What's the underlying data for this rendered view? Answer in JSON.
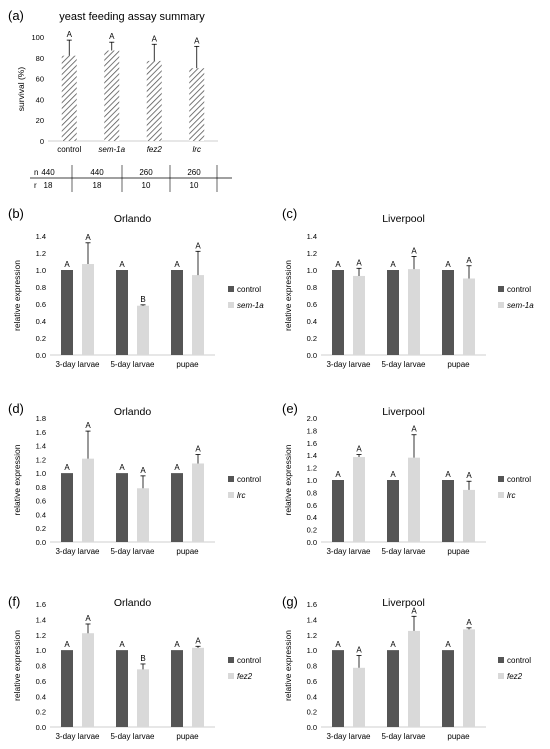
{
  "colors": {
    "control": "#555555",
    "treatment": "#d9d9d9",
    "hatch": "#555555",
    "axis": "#bfbfbf"
  },
  "panel_a": {
    "label": "(a)",
    "title": "yeast feeding assay summary",
    "table": {
      "rows": [
        {
          "label": "n",
          "values": [
            "440",
            "440",
            "260",
            "260"
          ]
        },
        {
          "label": "r",
          "values": [
            "18",
            "18",
            "10",
            "10"
          ]
        }
      ]
    }
  },
  "chart_data": [
    {
      "id": "a",
      "type": "bar",
      "title": "yeast feeding assay summary",
      "ylabel": "survival (%)",
      "ylim": [
        0,
        100
      ],
      "yticks": [
        0,
        20,
        40,
        60,
        80,
        100
      ],
      "categories": [
        "control",
        "sem-1a",
        "fez2",
        "lrc"
      ],
      "category_italic": [
        false,
        true,
        true,
        true
      ],
      "series": [
        {
          "values": [
            82,
            87,
            77,
            70
          ],
          "errors": [
            15,
            8,
            16,
            21
          ],
          "letters": [
            "A",
            "A",
            "A",
            "A"
          ]
        }
      ]
    },
    {
      "id": "b",
      "label": "(b)",
      "type": "bar",
      "title": "Orlando",
      "ylabel": "relative expression",
      "ylim": [
        0,
        1.4
      ],
      "yticks": [
        0,
        0.2,
        0.4,
        0.6,
        0.8,
        1.0,
        1.2,
        1.4
      ],
      "categories": [
        "3-day larvae",
        "5-day larvae",
        "pupae"
      ],
      "series": [
        {
          "name": "control",
          "values": [
            1.0,
            1.0,
            1.0
          ],
          "errors": [
            0,
            0,
            0
          ],
          "letters": [
            "A",
            "A",
            "A"
          ]
        },
        {
          "name": "sem-1a",
          "values": [
            1.07,
            0.58,
            0.94
          ],
          "errors": [
            0.25,
            0.01,
            0.28
          ],
          "letters": [
            "A",
            "B",
            "A"
          ]
        }
      ]
    },
    {
      "id": "c",
      "label": "(c)",
      "type": "bar",
      "title": "Liverpool",
      "ylabel": "relative expression",
      "ylim": [
        0,
        1.4
      ],
      "yticks": [
        0,
        0.2,
        0.4,
        0.6,
        0.8,
        1.0,
        1.2,
        1.4
      ],
      "categories": [
        "3-day larvae",
        "5-day larvae",
        "pupae"
      ],
      "series": [
        {
          "name": "control",
          "values": [
            1.0,
            1.0,
            1.0
          ],
          "errors": [
            0,
            0,
            0
          ],
          "letters": [
            "A",
            "A",
            "A"
          ]
        },
        {
          "name": "sem-1a",
          "values": [
            0.93,
            1.01,
            0.9
          ],
          "errors": [
            0.09,
            0.15,
            0.15
          ],
          "letters": [
            "A",
            "A",
            "A"
          ]
        }
      ]
    },
    {
      "id": "d",
      "label": "(d)",
      "type": "bar",
      "title": "Orlando",
      "ylabel": "relative expression",
      "ylim": [
        0,
        1.8
      ],
      "yticks": [
        0,
        0.2,
        0.4,
        0.6,
        0.8,
        1.0,
        1.2,
        1.4,
        1.6,
        1.8
      ],
      "categories": [
        "3-day larvae",
        "5-day larvae",
        "pupae"
      ],
      "series": [
        {
          "name": "control",
          "values": [
            1.0,
            1.0,
            1.0
          ],
          "errors": [
            0,
            0,
            0
          ],
          "letters": [
            "A",
            "A",
            "A"
          ]
        },
        {
          "name": "lrc",
          "values": [
            1.21,
            0.78,
            1.14
          ],
          "errors": [
            0.4,
            0.18,
            0.13
          ],
          "letters": [
            "A",
            "A",
            "A"
          ]
        }
      ]
    },
    {
      "id": "e",
      "label": "(e)",
      "type": "bar",
      "title": "Liverpool",
      "ylabel": "relative expression",
      "ylim": [
        0,
        2.0
      ],
      "yticks": [
        0,
        0.2,
        0.4,
        0.6,
        0.8,
        1.0,
        1.2,
        1.4,
        1.6,
        1.8,
        2.0
      ],
      "categories": [
        "3-day larvae",
        "5-day larvae",
        "pupae"
      ],
      "series": [
        {
          "name": "control",
          "values": [
            1.0,
            1.0,
            1.0
          ],
          "errors": [
            0,
            0,
            0
          ],
          "letters": [
            "A",
            "A",
            "A"
          ]
        },
        {
          "name": "lrc",
          "values": [
            1.37,
            1.36,
            0.84
          ],
          "errors": [
            0.04,
            0.37,
            0.14
          ],
          "letters": [
            "A",
            "A",
            "A"
          ]
        }
      ]
    },
    {
      "id": "f",
      "label": "(f)",
      "type": "bar",
      "title": "Orlando",
      "ylabel": "relative expression",
      "ylim": [
        0,
        1.6
      ],
      "yticks": [
        0,
        0.2,
        0.4,
        0.6,
        0.8,
        1.0,
        1.2,
        1.4,
        1.6
      ],
      "categories": [
        "3-day larvae",
        "5-day larvae",
        "pupae"
      ],
      "series": [
        {
          "name": "control",
          "values": [
            1.0,
            1.0,
            1.0
          ],
          "errors": [
            0,
            0,
            0
          ],
          "letters": [
            "A",
            "A",
            "A"
          ]
        },
        {
          "name": "fez2",
          "values": [
            1.22,
            0.75,
            1.03
          ],
          "errors": [
            0.12,
            0.07,
            0.02
          ],
          "letters": [
            "A",
            "B",
            "A"
          ]
        }
      ]
    },
    {
      "id": "g",
      "label": "(g)",
      "type": "bar",
      "title": "Liverpool",
      "ylabel": "relative expression",
      "ylim": [
        0,
        1.6
      ],
      "yticks": [
        0,
        0.2,
        0.4,
        0.6,
        0.8,
        1.0,
        1.2,
        1.4,
        1.6
      ],
      "categories": [
        "3-day larvae",
        "5-day larvae",
        "pupae"
      ],
      "series": [
        {
          "name": "control",
          "values": [
            1.0,
            1.0,
            1.0
          ],
          "errors": [
            0,
            0,
            0
          ],
          "letters": [
            "A",
            "A",
            "A"
          ]
        },
        {
          "name": "fez2",
          "values": [
            0.77,
            1.25,
            1.27
          ],
          "errors": [
            0.16,
            0.19,
            0.02
          ],
          "letters": [
            "A",
            "A",
            "A"
          ]
        }
      ]
    }
  ]
}
